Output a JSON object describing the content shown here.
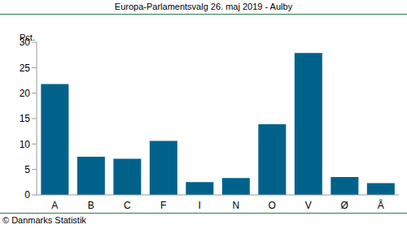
{
  "chart_data": {
    "type": "bar",
    "title": "Europa-Parlamentsvalg 26. maj 2019 - Aulby",
    "y_label": "Pct.",
    "footer": "© Danmarks Statistik",
    "categories": [
      "A",
      "B",
      "C",
      "F",
      "I",
      "N",
      "O",
      "V",
      "Ø",
      "Å"
    ],
    "values": [
      21.8,
      7.5,
      7.1,
      10.6,
      2.5,
      3.3,
      13.9,
      27.9,
      3.5,
      2.3
    ],
    "color": "#00628b",
    "ylim": [
      0,
      30
    ],
    "yticks": [
      0,
      5,
      10,
      15,
      20,
      25,
      30
    ],
    "grid": false,
    "data_labels": false
  }
}
